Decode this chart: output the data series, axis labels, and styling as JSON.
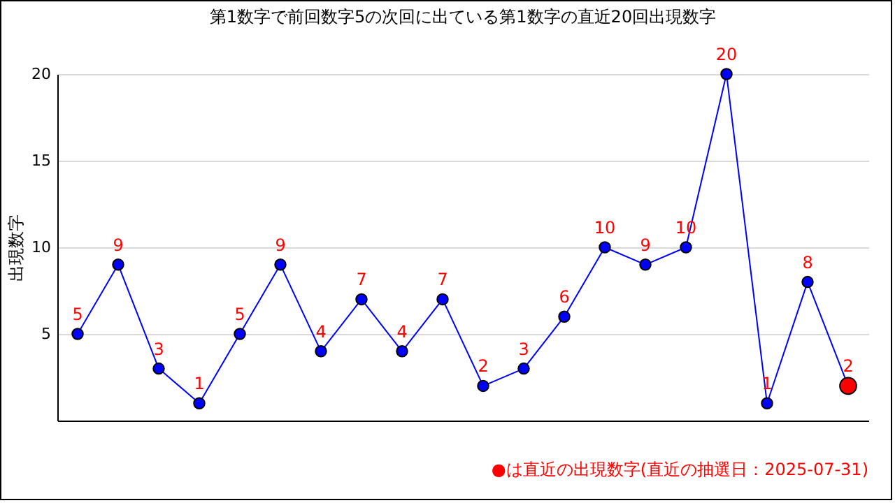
{
  "chart_data": {
    "type": "line",
    "title": "第1数字で前回数字5の次回に出ている第1数字の直近20回出現数字",
    "ylabel": "出現数字",
    "categories": [
      null,
      null,
      null,
      null,
      null,
      null,
      null,
      null,
      null,
      null,
      null,
      null,
      null,
      null,
      null,
      null,
      null,
      null,
      null,
      null
    ],
    "series": [
      {
        "color": "#0000ff",
        "values": [
          5,
          9,
          3,
          1,
          5,
          9,
          4,
          7,
          4,
          7,
          2,
          3,
          6,
          10,
          9,
          10,
          20,
          1,
          8,
          2
        ],
        "colors": [
          "#0000ff",
          "#0000ff",
          "#0000ff",
          "#0000ff",
          "#0000ff",
          "#0000ff",
          "#0000ff",
          "#0000ff",
          "#0000ff",
          "#0000ff",
          "#0000ff",
          "#0000ff",
          "#0000ff",
          "#0000ff",
          "#0000ff",
          "#0000ff",
          "#0000ff",
          "#0000ff",
          "#0000ff",
          "#ff0000"
        ]
      }
    ],
    "ylim": [
      0,
      20
    ],
    "yticks": [
      5,
      10,
      15,
      20
    ],
    "grid": "y",
    "marker": "circle",
    "line_style": "solid",
    "data_labels": true,
    "annotations": [
      "●は直近の出現数字(直近の抽選日：2025-07-31)"
    ]
  }
}
